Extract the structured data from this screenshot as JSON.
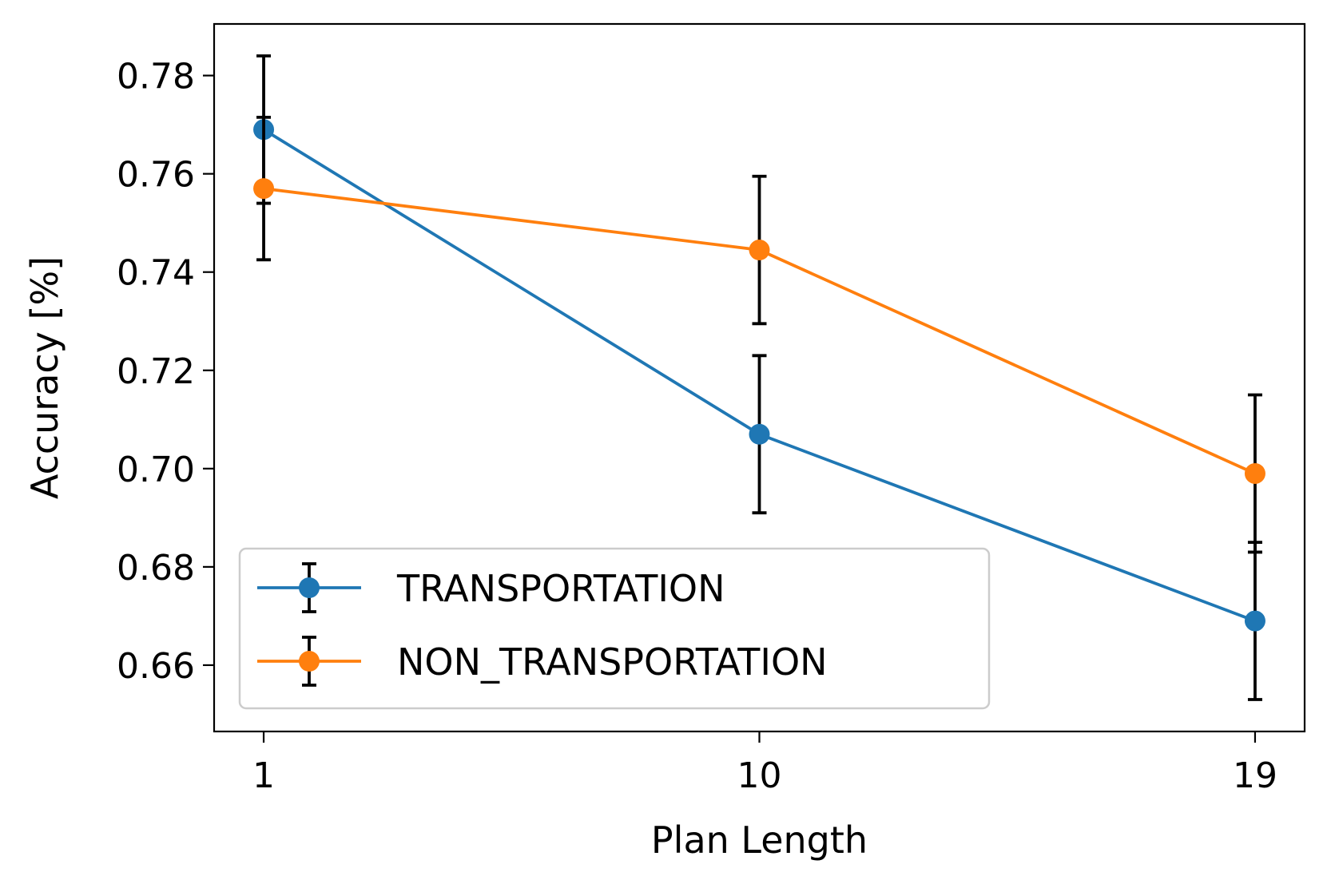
{
  "chart_data": {
    "type": "line",
    "title": "",
    "xlabel": "Plan Length",
    "ylabel": "Accuracy [%]",
    "x": [
      1,
      10,
      19
    ],
    "x_tick_labels": [
      "1",
      "10",
      "19"
    ],
    "y_ticks": [
      0.66,
      0.68,
      0.7,
      0.72,
      0.74,
      0.76,
      0.78
    ],
    "y_tick_labels": [
      "0.66",
      "0.68",
      "0.70",
      "0.72",
      "0.74",
      "0.76",
      "0.78"
    ],
    "xlim": [
      0.1,
      19.9
    ],
    "ylim": [
      0.6465,
      0.7905
    ],
    "grid": false,
    "legend_position": "lower-left",
    "series": [
      {
        "name": "TRANSPORTATION",
        "color": "#1f77b4",
        "values": [
          0.769,
          0.707,
          0.669
        ],
        "errors": [
          0.015,
          0.016,
          0.016
        ]
      },
      {
        "name": "NON_TRANSPORTATION",
        "color": "#ff7f0e",
        "values": [
          0.757,
          0.7445,
          0.699
        ],
        "errors": [
          0.0145,
          0.015,
          0.016
        ]
      }
    ],
    "error_bar_color": "#000000"
  }
}
